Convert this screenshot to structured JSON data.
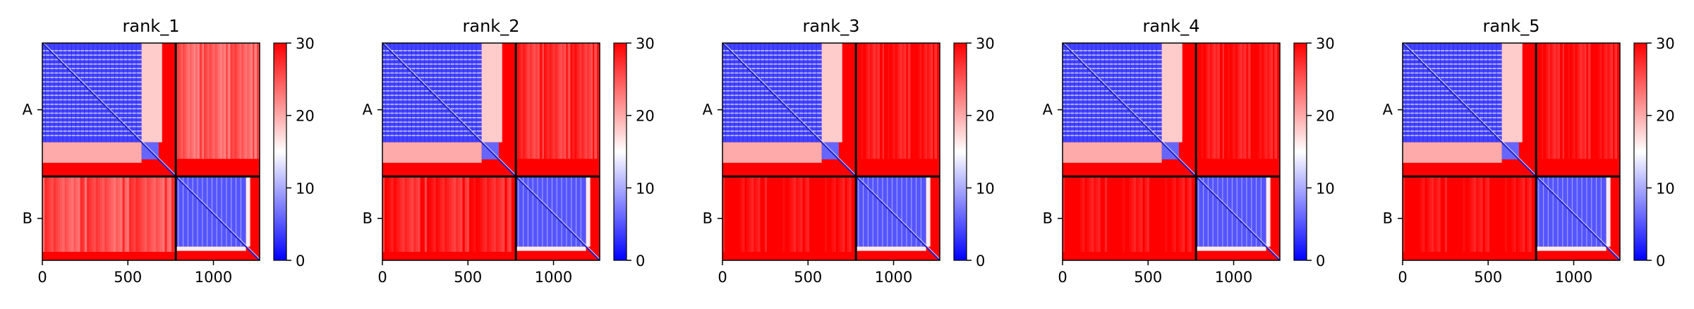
{
  "colors": {
    "low": "#0000ff",
    "mid": "#ffffff",
    "high": "#ff0000",
    "divider": "#000000"
  },
  "chart_data": [
    {
      "type": "heatmap",
      "title": "rank_1",
      "xticks": [
        0,
        500,
        1000
      ],
      "xlim": [
        0,
        1270
      ],
      "ylabels": [
        "A",
        "B"
      ],
      "chain_boundary": 780,
      "colorbar": {
        "range": [
          0,
          30
        ],
        "ticks": [
          0,
          10,
          20,
          30
        ]
      },
      "interchain_level": 24
    },
    {
      "type": "heatmap",
      "title": "rank_2",
      "xticks": [
        0,
        500,
        1000
      ],
      "xlim": [
        0,
        1270
      ],
      "ylabels": [
        "A",
        "B"
      ],
      "chain_boundary": 780,
      "colorbar": {
        "range": [
          0,
          30
        ],
        "ticks": [
          0,
          10,
          20,
          30
        ]
      },
      "interchain_level": 27
    },
    {
      "type": "heatmap",
      "title": "rank_3",
      "xticks": [
        0,
        500,
        1000
      ],
      "xlim": [
        0,
        1270
      ],
      "ylabels": [
        "A",
        "B"
      ],
      "chain_boundary": 780,
      "colorbar": {
        "range": [
          0,
          30
        ],
        "ticks": [
          0,
          10,
          20,
          30
        ]
      },
      "interchain_level": 29
    },
    {
      "type": "heatmap",
      "title": "rank_4",
      "xticks": [
        0,
        500,
        1000
      ],
      "xlim": [
        0,
        1270
      ],
      "ylabels": [
        "A",
        "B"
      ],
      "chain_boundary": 780,
      "colorbar": {
        "range": [
          0,
          30
        ],
        "ticks": [
          0,
          10,
          20,
          30
        ]
      },
      "interchain_level": 29
    },
    {
      "type": "heatmap",
      "title": "rank_5",
      "xticks": [
        0,
        500,
        1000
      ],
      "xlim": [
        0,
        1270
      ],
      "ylabels": [
        "A",
        "B"
      ],
      "chain_boundary": 780,
      "colorbar": {
        "range": [
          0,
          30
        ],
        "ticks": [
          0,
          10,
          20,
          30
        ]
      },
      "interchain_level": 29
    }
  ]
}
